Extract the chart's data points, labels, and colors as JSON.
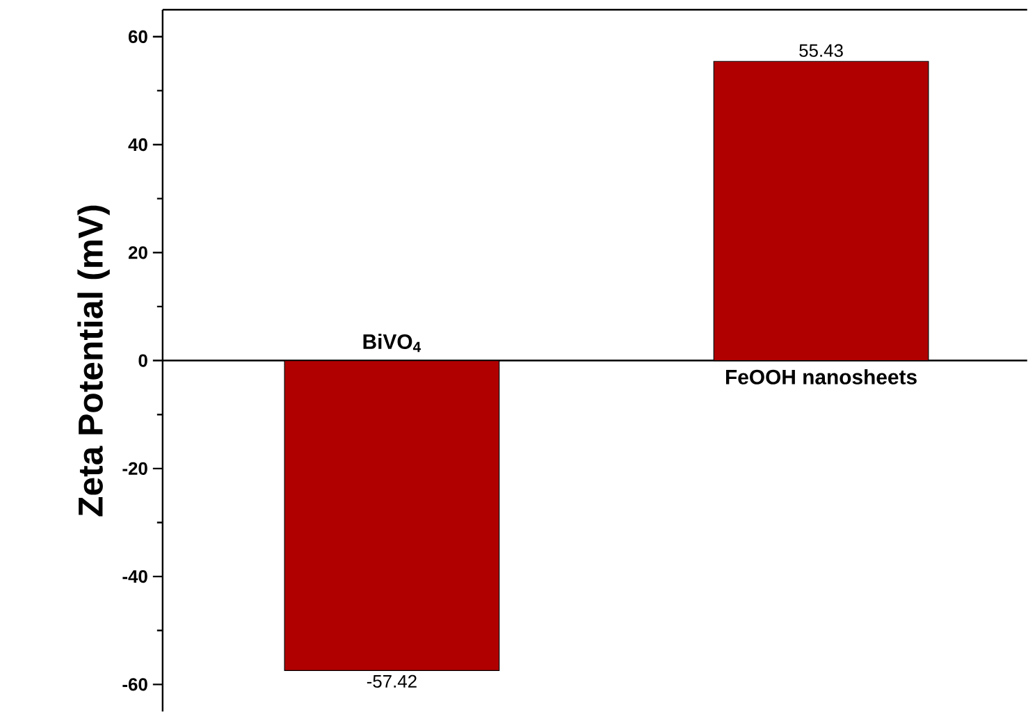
{
  "chart_data": {
    "type": "bar",
    "ylabel": "Zeta Potential (mV)",
    "categories": [
      "BiVO$_{4}$",
      "FeOOH nanosheets"
    ],
    "values": [
      -57.42,
      55.43
    ],
    "color": "#b00000",
    "ylim": [
      -65,
      65
    ],
    "yticks": [
      -60,
      -40,
      -20,
      0,
      20,
      40,
      60
    ],
    "data_labels": true
  }
}
